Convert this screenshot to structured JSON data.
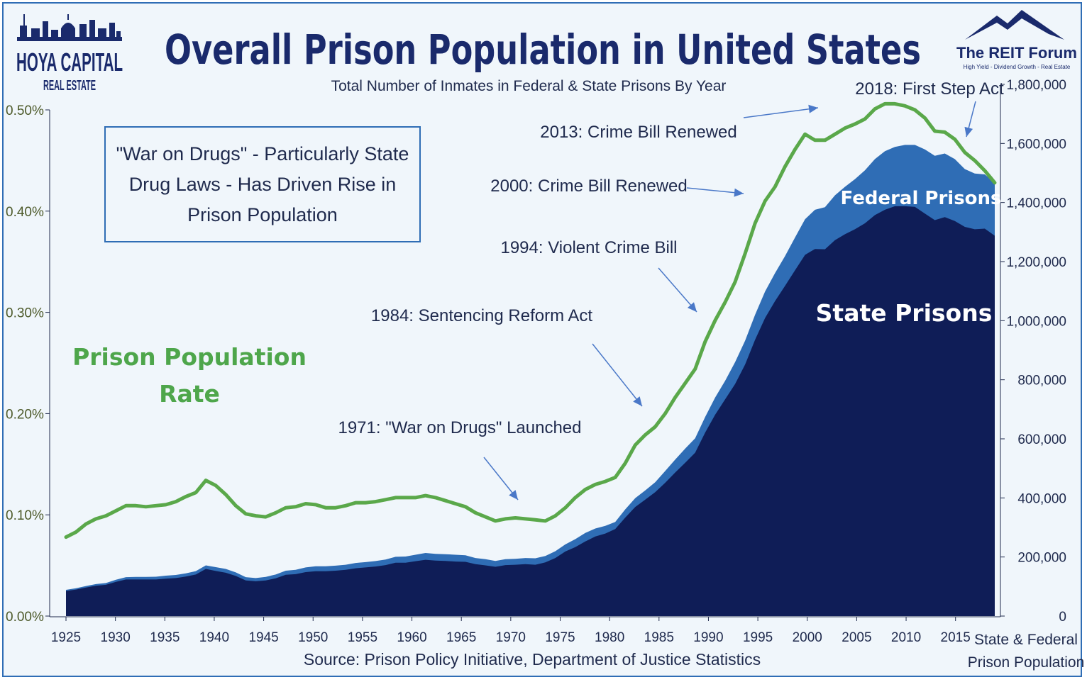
{
  "title": "Overall Prison Population in United States",
  "subtitle": "Total Number of Inmates in Federal & State Prisons By Year",
  "source": "Source: Prison Policy Initiative, Department of Justice Statistics",
  "logo_left": {
    "line1": "HOYA CAPITAL",
    "line2": "REAL ESTATE"
  },
  "logo_right": {
    "name": "The REIT Forum",
    "tagline": "High Yield - Dividend Growth - Real Estate"
  },
  "callout_box": {
    "lines": [
      "\"War on Drugs\" - Particularly State",
      "Drug Laws - Has Driven Rise in",
      "Prison Population"
    ]
  },
  "labels": {
    "rate_line1": "Prison Population",
    "rate_line2": "Rate",
    "federal": "Federal Prisons",
    "state": "State Prisons",
    "right_axis_line1": "State & Federal",
    "right_axis_line2": "Prison Population"
  },
  "colors": {
    "rate_line": "#5aa84a",
    "federal": "#2f6db5",
    "state": "#0f1d57",
    "arrow": "#4a78c8",
    "rate_label": "#4ea64b"
  },
  "chart_data": {
    "type": "area",
    "title": "Overall Prison Population in United States",
    "x_ticks": [
      1925,
      1930,
      1935,
      1940,
      1945,
      1950,
      1955,
      1960,
      1965,
      1970,
      1975,
      1980,
      1985,
      1990,
      1995,
      2000,
      2005,
      2010,
      2015
    ],
    "left_axis": {
      "label": "Prison Population Rate",
      "range": [
        0,
        0.5
      ],
      "ticks": [
        "0.00%",
        "0.10%",
        "0.20%",
        "0.30%",
        "0.40%",
        "0.50%"
      ]
    },
    "right_axis": {
      "label": "State & Federal Prison Population",
      "range": [
        0,
        1700000
      ],
      "ticks": [
        "0",
        "200,000",
        "400,000",
        "600,000",
        "800,000",
        "1,000,000",
        "1,200,000",
        "1,400,000",
        "1,600,000",
        "1,800,000"
      ]
    },
    "years": [
      1925,
      1926,
      1927,
      1928,
      1929,
      1930,
      1931,
      1932,
      1933,
      1934,
      1935,
      1936,
      1937,
      1938,
      1939,
      1940,
      1941,
      1942,
      1943,
      1944,
      1945,
      1946,
      1947,
      1948,
      1949,
      1950,
      1951,
      1952,
      1953,
      1954,
      1955,
      1956,
      1957,
      1958,
      1959,
      1960,
      1961,
      1962,
      1963,
      1964,
      1965,
      1966,
      1967,
      1968,
      1969,
      1970,
      1971,
      1972,
      1973,
      1974,
      1975,
      1976,
      1977,
      1978,
      1979,
      1980,
      1981,
      1982,
      1983,
      1984,
      1985,
      1986,
      1987,
      1988,
      1989,
      1990,
      1991,
      1992,
      1993,
      1994,
      1995,
      1996,
      1997,
      1998,
      1999,
      2000,
      2001,
      2002,
      2003,
      2004,
      2005,
      2006,
      2007,
      2008,
      2009,
      2010,
      2011,
      2012,
      2013,
      2014,
      2015,
      2016,
      2017,
      2018
    ],
    "series": [
      {
        "name": "Prison Population Rate",
        "axis": "left",
        "values": [
          0.078,
          0.083,
          0.091,
          0.096,
          0.099,
          0.104,
          0.109,
          0.109,
          0.108,
          0.109,
          0.11,
          0.113,
          0.118,
          0.122,
          0.134,
          0.129,
          0.12,
          0.109,
          0.101,
          0.099,
          0.098,
          0.102,
          0.107,
          0.108,
          0.111,
          0.11,
          0.107,
          0.107,
          0.109,
          0.112,
          0.112,
          0.113,
          0.115,
          0.117,
          0.117,
          0.117,
          0.119,
          0.117,
          0.114,
          0.111,
          0.108,
          0.102,
          0.098,
          0.094,
          0.096,
          0.097,
          0.096,
          0.095,
          0.094,
          0.099,
          0.107,
          0.117,
          0.125,
          0.13,
          0.133,
          0.137,
          0.151,
          0.169,
          0.179,
          0.187,
          0.2,
          0.216,
          0.23,
          0.244,
          0.271,
          0.292,
          0.31,
          0.33,
          0.358,
          0.388,
          0.41,
          0.424,
          0.444,
          0.461,
          0.476,
          0.47,
          0.47,
          0.476,
          0.482,
          0.486,
          0.491,
          0.501,
          0.506,
          0.506,
          0.504,
          0.5,
          0.492,
          0.479,
          0.478,
          0.471,
          0.458,
          0.45,
          0.44,
          0.428
        ]
      },
      {
        "name": "State Prisons",
        "axis": "right",
        "values": [
          85000,
          90000,
          97000,
          103000,
          106000,
          116000,
          124000,
          124000,
          124000,
          124000,
          127000,
          129000,
          134000,
          141000,
          160000,
          153000,
          147000,
          136000,
          121000,
          118000,
          121000,
          128000,
          140000,
          142000,
          149000,
          152000,
          152000,
          154000,
          157000,
          162000,
          165000,
          168000,
          173000,
          181000,
          181000,
          186000,
          191000,
          188000,
          187000,
          185000,
          184000,
          176000,
          172000,
          167000,
          173000,
          174000,
          176000,
          174000,
          182000,
          197000,
          219000,
          234000,
          253000,
          270000,
          280000,
          295000,
          334000,
          370000,
          395000,
          420000,
          452000,
          487000,
          520000,
          554000,
          622000,
          683000,
          735000,
          787000,
          853000,
          937000,
          1011000,
          1068000,
          1120000,
          1173000,
          1225000,
          1245000,
          1244000,
          1275000,
          1295000,
          1312000,
          1332000,
          1360000,
          1378000,
          1390000,
          1390000,
          1388000,
          1365000,
          1343000,
          1353000,
          1340000,
          1320000,
          1312000,
          1314000,
          1290000
        ]
      },
      {
        "name": "Federal Prisons",
        "axis": "right",
        "values": [
          4000,
          4500,
          5000,
          5500,
          6000,
          7000,
          8000,
          9000,
          9000,
          9500,
          10000,
          10500,
          11000,
          11500,
          12000,
          13000,
          13000,
          12000,
          11000,
          11000,
          12000,
          13000,
          14000,
          15000,
          16000,
          17000,
          17000,
          17000,
          17000,
          18000,
          18000,
          18500,
          19000,
          20000,
          21000,
          22000,
          23000,
          23000,
          23000,
          23000,
          22000,
          21000,
          21000,
          20000,
          20000,
          20000,
          21000,
          22000,
          22000,
          23000,
          24000,
          27000,
          29000,
          27000,
          26000,
          24000,
          28000,
          30000,
          31000,
          34000,
          40000,
          44000,
          48000,
          49000,
          53000,
          58000,
          63000,
          74000,
          81000,
          85000,
          90000,
          95000,
          101000,
          111000,
          121000,
          133000,
          143000,
          152000,
          161000,
          170000,
          180000,
          190000,
          199000,
          201000,
          208000,
          210000,
          218000,
          218000,
          216000,
          210000,
          196000,
          189000,
          184000,
          180000
        ]
      }
    ],
    "annotations": [
      {
        "year": 1971,
        "text": "1971: \"War on Drugs\" Launched"
      },
      {
        "year": 1984,
        "text": "1984: Sentencing Reform Act"
      },
      {
        "year": 1994,
        "text": "1994: Violent Crime Bill"
      },
      {
        "year": 2000,
        "text": "2000: Crime Bill Renewed"
      },
      {
        "year": 2013,
        "text": "2013: Crime Bill Renewed"
      },
      {
        "year": 2018,
        "text": "2018: First Step Act"
      }
    ]
  }
}
